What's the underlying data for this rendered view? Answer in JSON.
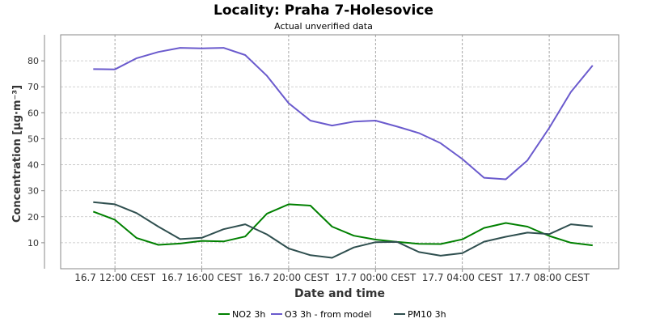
{
  "chart_data": {
    "type": "line",
    "title": "Locality: Praha 7-Holesovice",
    "subtitle": "Actual unverified data",
    "xlabel": "Date and time",
    "ylabel": "Concentration [µg·m⁻³]",
    "ylim": [
      0,
      90
    ],
    "y_ticks": [
      10,
      20,
      30,
      40,
      50,
      60,
      70,
      80
    ],
    "x_tick_labels": [
      "16.7 12:00 CEST",
      "16.7 16:00 CEST",
      "16.7 20:00 CEST",
      "17.7 00:00 CEST",
      "17.7 04:00 CEST",
      "17.7 08:00 CEST"
    ],
    "x_hours": [
      11,
      12,
      13,
      14,
      15,
      16,
      17,
      18,
      19,
      20,
      21,
      22,
      23,
      24,
      25,
      26,
      27,
      28,
      29,
      30,
      31,
      32,
      33,
      34
    ],
    "grid": true,
    "legend_position": "bottom",
    "series": [
      {
        "name": "NO2 3h",
        "color": "#008000",
        "values": [
          22.0,
          18.8,
          11.8,
          9.2,
          9.7,
          10.7,
          10.5,
          12.4,
          21.2,
          24.8,
          24.3,
          16.2,
          12.7,
          11.2,
          10.3,
          9.6,
          9.5,
          11.3,
          15.7,
          17.6,
          16.2,
          12.6,
          10.0,
          9.0
        ]
      },
      {
        "name": "O3 3h - from model",
        "color": "#6a5acd",
        "values": [
          76.8,
          76.7,
          81.0,
          83.4,
          85.0,
          84.8,
          85.0,
          82.2,
          74.2,
          63.7,
          57.0,
          55.1,
          56.6,
          57.0,
          54.7,
          52.2,
          48.3,
          42.2,
          35.0,
          34.4,
          41.7,
          54.2,
          68.0,
          78.2
        ]
      },
      {
        "name": "PM10 3h",
        "color": "#2f4f4f",
        "values": [
          25.6,
          24.8,
          21.4,
          16.2,
          11.4,
          11.9,
          15.2,
          17.1,
          13.2,
          7.8,
          5.2,
          4.2,
          8.2,
          10.2,
          10.3,
          6.4,
          5.0,
          6.0,
          10.4,
          12.3,
          13.9,
          13.3,
          17.1,
          16.3
        ]
      }
    ]
  }
}
